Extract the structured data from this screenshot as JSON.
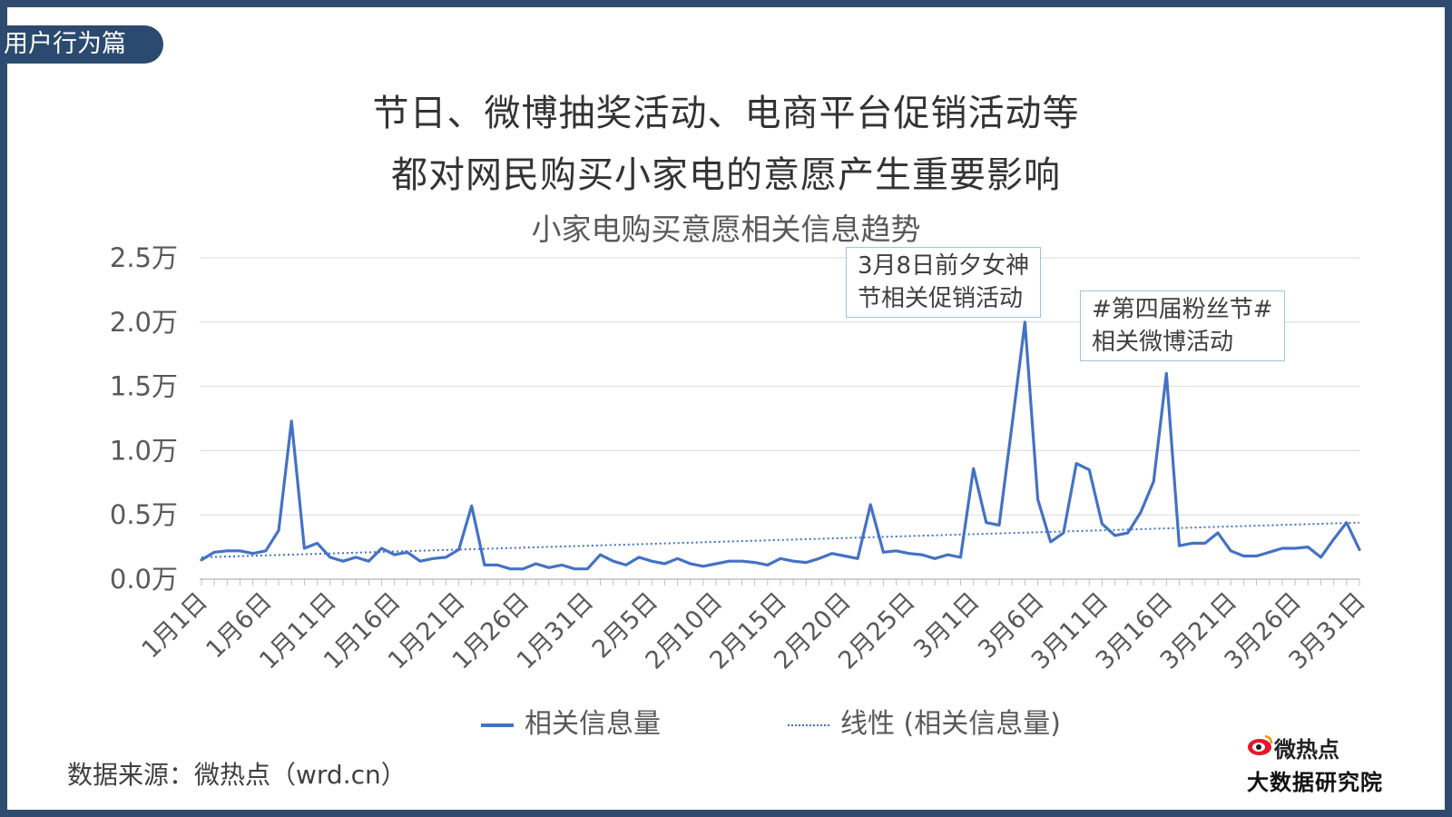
{
  "section_tag": "用户行为篇",
  "headline": {
    "line1": "节日、微博抽奖活动、电商平台促销活动等",
    "line2": "都对网民购买小家电的意愿产生重要影响"
  },
  "annotations": {
    "a1_line1": "3月8日前夕女神",
    "a1_line2": "节相关促销活动",
    "a2_line1": "#第四届粉丝节#",
    "a2_line2": "相关微博活动"
  },
  "source": "数据来源：微热点（wrd.cn）",
  "logo": {
    "top": "微热点",
    "bottom": "大数据研究院",
    "icon": "weibo-eye-icon"
  },
  "colors": {
    "series": "#4472c4",
    "frame": "#2f4b6e",
    "tag_bg": "#2b4a6f",
    "annot_border": "#9dc3e6"
  },
  "chart_data": {
    "type": "line",
    "title": "小家电购买意愿相关信息趋势",
    "xlabel": "",
    "ylabel": "",
    "ylim": [
      0,
      2.5
    ],
    "y_ticks": [
      "0.0万",
      "0.5万",
      "1.0万",
      "1.5万",
      "2.0万",
      "2.5万"
    ],
    "x_tick_labels": [
      "1月1日",
      "1月6日",
      "1月11日",
      "1月16日",
      "1月21日",
      "1月26日",
      "1月31日",
      "2月5日",
      "2月10日",
      "2月15日",
      "2月20日",
      "2月25日",
      "3月1日",
      "3月6日",
      "3月11日",
      "3月16日",
      "3月21日",
      "3月26日",
      "3月31日"
    ],
    "x_start": "1月1日",
    "x_end": "4月1日",
    "grid": true,
    "legend_position": "bottom",
    "series": [
      {
        "name": "相关信息量",
        "style": "solid",
        "values": [
          0.15,
          0.21,
          0.22,
          0.22,
          0.2,
          0.22,
          0.38,
          1.23,
          0.24,
          0.28,
          0.17,
          0.14,
          0.17,
          0.14,
          0.24,
          0.19,
          0.21,
          0.14,
          0.16,
          0.17,
          0.23,
          0.57,
          0.11,
          0.11,
          0.08,
          0.08,
          0.12,
          0.09,
          0.11,
          0.08,
          0.08,
          0.19,
          0.14,
          0.11,
          0.17,
          0.14,
          0.12,
          0.16,
          0.12,
          0.1,
          0.12,
          0.14,
          0.14,
          0.13,
          0.11,
          0.16,
          0.14,
          0.13,
          0.16,
          0.2,
          0.18,
          0.16,
          0.58,
          0.21,
          0.22,
          0.2,
          0.19,
          0.16,
          0.19,
          0.17,
          0.86,
          0.44,
          0.42,
          1.2,
          2.0,
          0.62,
          0.29,
          0.36,
          0.9,
          0.85,
          0.43,
          0.34,
          0.36,
          0.52,
          0.76,
          1.6,
          0.26,
          0.28,
          0.28,
          0.36,
          0.22,
          0.18,
          0.18,
          0.21,
          0.24,
          0.24,
          0.25,
          0.17,
          0.31,
          0.44,
          0.23
        ]
      },
      {
        "name": "线性 (相关信息量)",
        "style": "dotted",
        "values": [
          0.17,
          0.44
        ]
      }
    ]
  }
}
